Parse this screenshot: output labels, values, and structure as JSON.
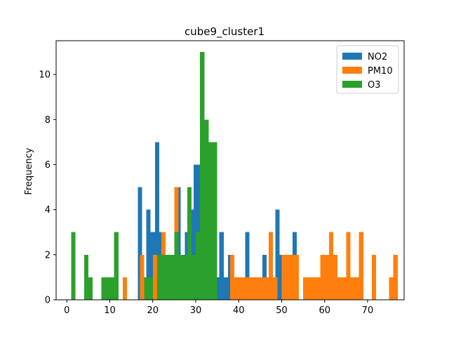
{
  "chart_data": {
    "type": "bar",
    "title": "cube9_cluster1",
    "xlabel": "",
    "ylabel": "Frequency",
    "xlim": [
      -2.5,
      78.5
    ],
    "ylim": [
      0,
      11.5
    ],
    "xticks": [
      0,
      10,
      20,
      30,
      40,
      50,
      60,
      70
    ],
    "yticks": [
      0,
      2,
      4,
      6,
      8,
      10
    ],
    "grid": false,
    "legend_position": "top-right",
    "series": [
      {
        "name": "NO2",
        "color": "#1f77b4",
        "bin_start": 14.5,
        "bin_width": 1.0,
        "values": [
          0,
          0,
          5,
          0,
          4,
          3,
          7,
          3,
          0,
          0,
          0,
          5,
          2,
          3,
          4,
          6,
          6,
          2,
          1,
          1,
          1,
          3,
          1,
          2,
          1,
          1,
          1,
          3,
          1,
          1,
          1,
          2,
          1,
          0,
          4,
          2,
          2,
          2,
          3
        ]
      },
      {
        "name": "PM10",
        "color": "#ff7f0e",
        "bin_start": 13.0,
        "bin_width": 1.0,
        "values": [
          1,
          0,
          0,
          0,
          2,
          0,
          0,
          2,
          0,
          3,
          0,
          0,
          5,
          0,
          0,
          0,
          0,
          0,
          0,
          0,
          0,
          0,
          0,
          0,
          0,
          2,
          1,
          1,
          1,
          1,
          1,
          1,
          1,
          1,
          3,
          1,
          0,
          2,
          2,
          2,
          2,
          0,
          1,
          1,
          1,
          1,
          2,
          2,
          3,
          2,
          1,
          1,
          3,
          1,
          1,
          3,
          0,
          0,
          2,
          0,
          0,
          0,
          1,
          2
        ]
      },
      {
        "name": "O3",
        "color": "#2ca02c",
        "bin_start": 1.0,
        "bin_width": 1.0,
        "values": [
          3,
          0,
          0,
          2,
          1,
          0,
          0,
          1,
          1,
          1,
          3,
          0,
          0,
          0,
          0,
          0,
          0,
          1,
          1,
          0,
          2,
          2,
          2,
          2,
          3,
          2,
          2,
          5,
          2,
          3,
          11,
          8,
          7,
          7
        ]
      }
    ]
  }
}
